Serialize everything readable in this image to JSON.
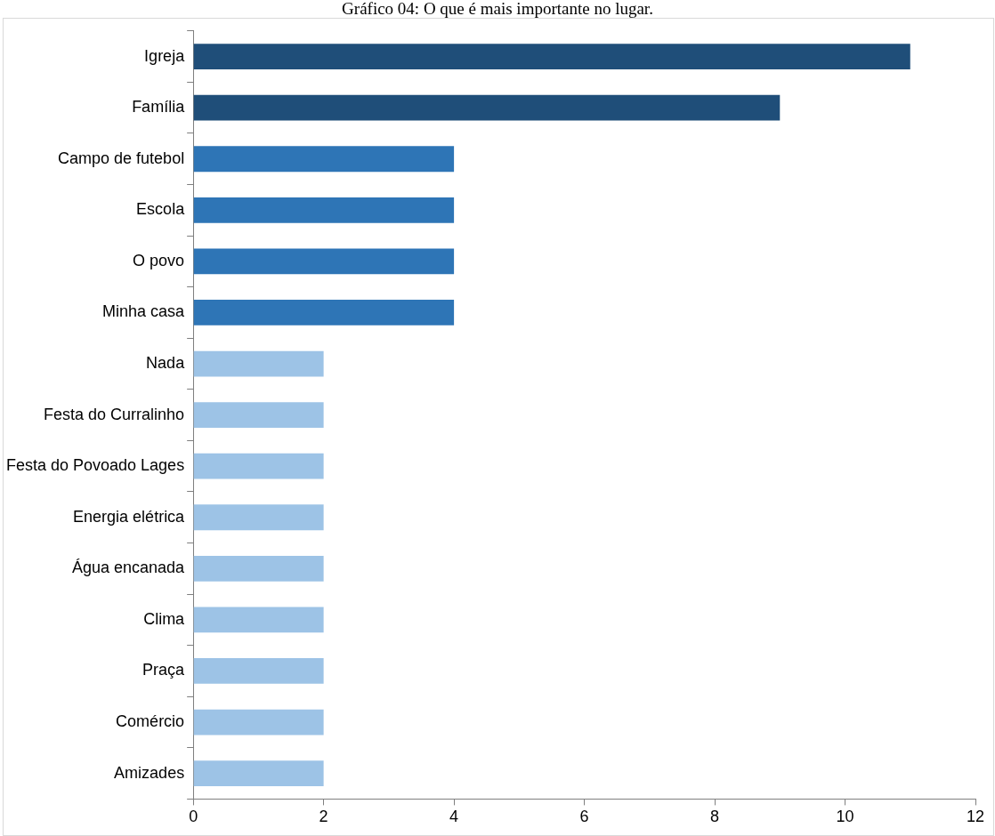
{
  "chart_data": {
    "type": "bar",
    "orientation": "horizontal",
    "title": "Gráfico 04: O que é mais importante no lugar.",
    "categories": [
      "Igreja",
      "Família",
      "Campo de futebol",
      "Escola",
      "O povo",
      "Minha casa",
      "Nada",
      "Festa do Curralinho",
      "Festa do Povoado Lages",
      "Energia elétrica",
      "Água encanada",
      "Clima",
      "Praça",
      "Comércio",
      "Amizades"
    ],
    "values": [
      11,
      9,
      4,
      4,
      4,
      4,
      2,
      2,
      2,
      2,
      2,
      2,
      2,
      2,
      2
    ],
    "colors": [
      "#1f4e79",
      "#1f4e79",
      "#2e75b6",
      "#2e75b6",
      "#2e75b6",
      "#2e75b6",
      "#9dc3e6",
      "#9dc3e6",
      "#9dc3e6",
      "#9dc3e6",
      "#9dc3e6",
      "#9dc3e6",
      "#9dc3e6",
      "#9dc3e6",
      "#9dc3e6"
    ],
    "xlim": [
      0,
      12
    ],
    "xticks": [
      0,
      2,
      4,
      6,
      8,
      10,
      12
    ],
    "grid": false,
    "legend": false
  }
}
